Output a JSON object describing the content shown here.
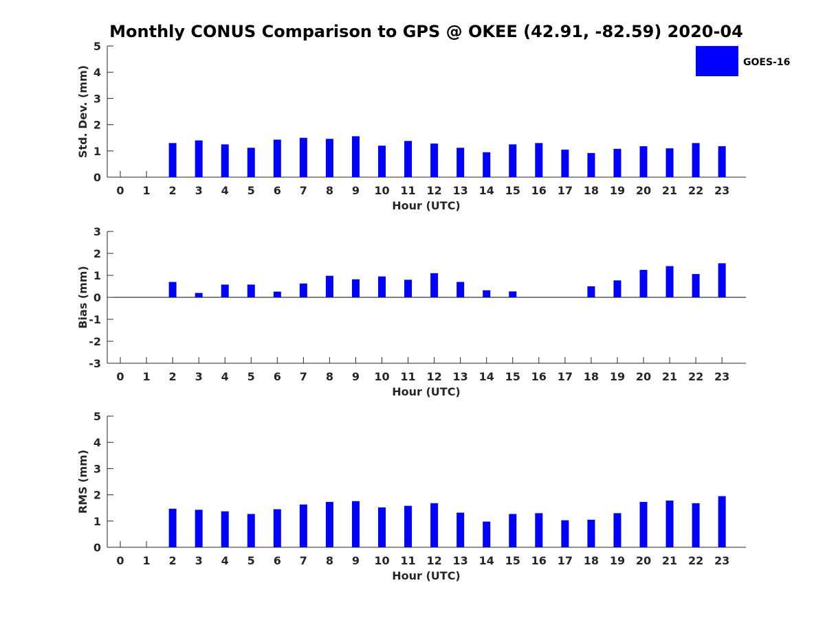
{
  "title": "Monthly CONUS Comparison to GPS @ OKEE (42.91, -82.59) 2020-04",
  "legend": {
    "label": "GOES-16",
    "color": "#0000ff"
  },
  "chart_data": [
    {
      "type": "bar",
      "ylabel": "Std. Dev. (mm)",
      "xlabel": "Hour (UTC)",
      "ylim": [
        0,
        5
      ],
      "yticks": [
        "0",
        "1",
        "2",
        "3",
        "4",
        "5"
      ],
      "categories": [
        "0",
        "1",
        "2",
        "3",
        "4",
        "5",
        "6",
        "7",
        "8",
        "9",
        "10",
        "11",
        "12",
        "13",
        "14",
        "15",
        "16",
        "17",
        "18",
        "19",
        "20",
        "21",
        "22",
        "23"
      ],
      "series": [
        {
          "name": "GOES-16",
          "color": "#0000ff",
          "values": [
            null,
            null,
            1.3,
            1.4,
            1.25,
            1.12,
            1.43,
            1.5,
            1.46,
            1.56,
            1.2,
            1.38,
            1.28,
            1.12,
            0.95,
            1.25,
            1.3,
            1.05,
            0.92,
            1.08,
            1.18,
            1.1,
            1.3,
            1.18
          ]
        }
      ]
    },
    {
      "type": "bar",
      "ylabel": "Bias (mm)",
      "xlabel": "Hour (UTC)",
      "ylim": [
        -3,
        3
      ],
      "yticks": [
        "-3",
        "-2",
        "-1",
        "0",
        "1",
        "2",
        "3"
      ],
      "categories": [
        "0",
        "1",
        "2",
        "3",
        "4",
        "5",
        "6",
        "7",
        "8",
        "9",
        "10",
        "11",
        "12",
        "13",
        "14",
        "15",
        "16",
        "17",
        "18",
        "19",
        "20",
        "21",
        "22",
        "23"
      ],
      "series": [
        {
          "name": "GOES-16",
          "color": "#0000ff",
          "values": [
            null,
            null,
            0.7,
            0.2,
            0.58,
            0.58,
            0.26,
            0.63,
            0.98,
            0.82,
            0.95,
            0.8,
            1.1,
            0.7,
            0.32,
            0.27,
            0,
            0,
            0.5,
            0.77,
            1.25,
            1.42,
            1.06,
            1.55
          ]
        }
      ]
    },
    {
      "type": "bar",
      "ylabel": "RMS (mm)",
      "xlabel": "Hour (UTC)",
      "ylim": [
        0,
        5
      ],
      "yticks": [
        "0",
        "1",
        "2",
        "3",
        "4",
        "5"
      ],
      "categories": [
        "0",
        "1",
        "2",
        "3",
        "4",
        "5",
        "6",
        "7",
        "8",
        "9",
        "10",
        "11",
        "12",
        "13",
        "14",
        "15",
        "16",
        "17",
        "18",
        "19",
        "20",
        "21",
        "22",
        "23"
      ],
      "series": [
        {
          "name": "GOES-16",
          "color": "#0000ff",
          "values": [
            null,
            null,
            1.47,
            1.43,
            1.37,
            1.27,
            1.45,
            1.63,
            1.73,
            1.76,
            1.52,
            1.58,
            1.68,
            1.32,
            0.98,
            1.27,
            1.3,
            1.03,
            1.05,
            1.3,
            1.73,
            1.78,
            1.68,
            1.95
          ]
        }
      ]
    }
  ]
}
